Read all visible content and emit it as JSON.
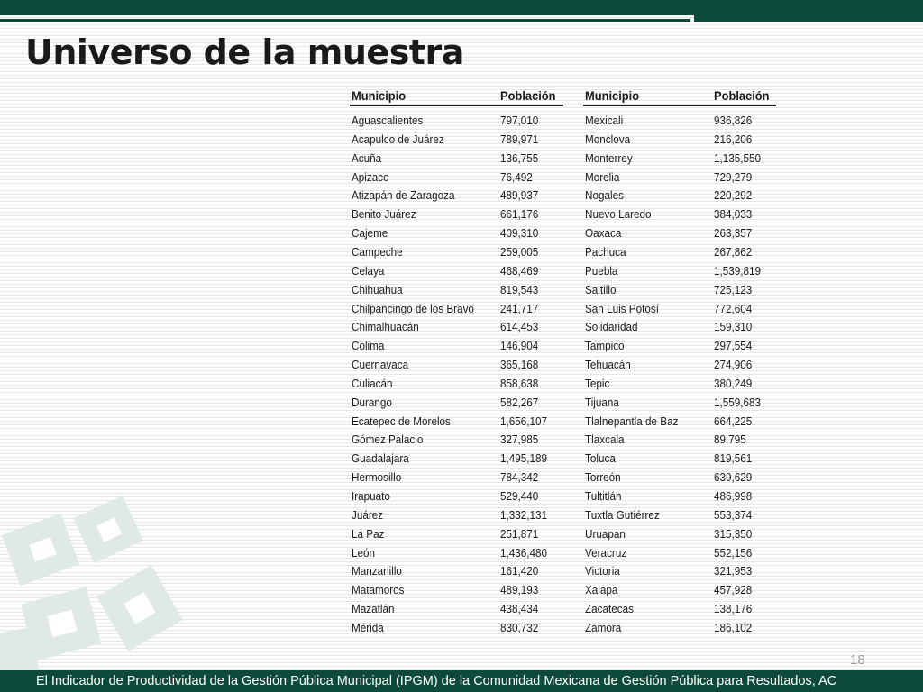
{
  "slide": {
    "title": "Universo de la muestra",
    "page_number": "18",
    "footer": "El Indicador de Productividad de la Gestión Pública Municipal (IPGM) de la Comunidad Mexicana de Gestión Pública para Resultados, AC"
  },
  "table": {
    "headers": {
      "municipio_1": "Municipio",
      "poblacion_1": "Población",
      "municipio_2": "Municipio",
      "poblacion_2": "Población"
    },
    "left": [
      [
        "Aguascalientes",
        "797,010"
      ],
      [
        "Acapulco de Juárez",
        "789,971"
      ],
      [
        "Acuña",
        "136,755"
      ],
      [
        "Apizaco",
        "76,492"
      ],
      [
        "Atizapán de Zaragoza",
        "489,937"
      ],
      [
        "Benito Juárez",
        "661,176"
      ],
      [
        "Cajeme",
        "409,310"
      ],
      [
        "Campeche",
        "259,005"
      ],
      [
        "Celaya",
        "468,469"
      ],
      [
        "Chihuahua",
        "819,543"
      ],
      [
        "Chilpancingo de los Bravo",
        "241,717"
      ],
      [
        "Chimalhuacán",
        "614,453"
      ],
      [
        "Colima",
        "146,904"
      ],
      [
        "Cuernavaca",
        "365,168"
      ],
      [
        "Culiacán",
        "858,638"
      ],
      [
        "Durango",
        "582,267"
      ],
      [
        "Ecatepec de Morelos",
        "1,656,107"
      ],
      [
        "Gómez Palacio",
        "327,985"
      ],
      [
        "Guadalajara",
        "1,495,189"
      ],
      [
        "Hermosillo",
        "784,342"
      ],
      [
        "Irapuato",
        "529,440"
      ],
      [
        "Juárez",
        "1,332,131"
      ],
      [
        "La Paz",
        "251,871"
      ],
      [
        "León",
        "1,436,480"
      ],
      [
        "Manzanillo",
        "161,420"
      ],
      [
        "Matamoros",
        "489,193"
      ],
      [
        "Mazatlán",
        "438,434"
      ],
      [
        "Mérida",
        "830,732"
      ]
    ],
    "right": [
      [
        "Mexicali",
        "936,826"
      ],
      [
        "Monclova",
        "216,206"
      ],
      [
        "Monterrey",
        "1,135,550"
      ],
      [
        "Morelia",
        "729,279"
      ],
      [
        "Nogales",
        "220,292"
      ],
      [
        "Nuevo Laredo",
        "384,033"
      ],
      [
        "Oaxaca",
        "263,357"
      ],
      [
        "Pachuca",
        "267,862"
      ],
      [
        "Puebla",
        "1,539,819"
      ],
      [
        "Saltillo",
        "725,123"
      ],
      [
        "San Luis Potosí",
        "772,604"
      ],
      [
        "Solidaridad",
        "159,310"
      ],
      [
        "Tampico",
        "297,554"
      ],
      [
        "Tehuacán",
        "274,906"
      ],
      [
        "Tepic",
        "380,249"
      ],
      [
        "Tijuana",
        "1,559,683"
      ],
      [
        "Tlalnepantla de Baz",
        "664,225"
      ],
      [
        "Tlaxcala",
        "89,795"
      ],
      [
        "Toluca",
        "819,561"
      ],
      [
        "Torreón",
        "639,629"
      ],
      [
        "Tultitlán",
        "486,998"
      ],
      [
        "Tuxtla Gutiérrez",
        "553,374"
      ],
      [
        "Uruapan",
        "315,350"
      ],
      [
        "Veracruz",
        "552,156"
      ],
      [
        "Victoria",
        "321,953"
      ],
      [
        "Xalapa",
        "457,928"
      ],
      [
        "Zacatecas",
        "138,176"
      ],
      [
        "Zamora",
        "186,102"
      ]
    ]
  },
  "colors": {
    "brand_green": "#0e4a3a",
    "watermark": "#dfe9e7"
  }
}
